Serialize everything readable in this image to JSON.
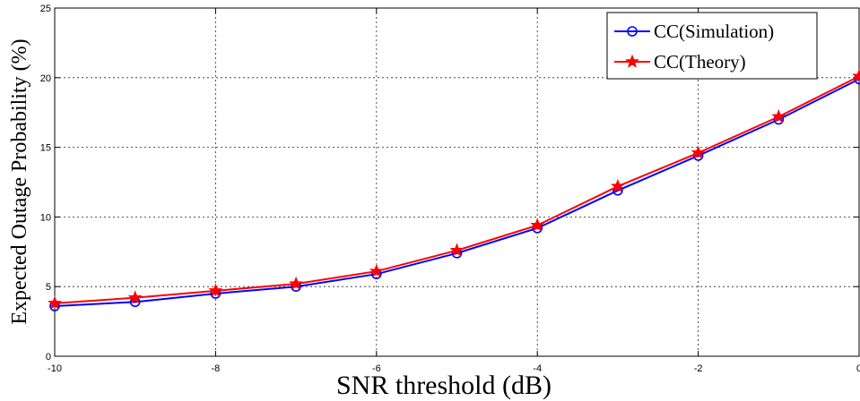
{
  "chart_data": {
    "type": "line",
    "title": "",
    "xlabel": "SNR threshold (dB)",
    "ylabel": "Expected Outage Probability (%)",
    "xlim": [
      -10,
      0
    ],
    "ylim": [
      0,
      25
    ],
    "xticks": [
      -10,
      -8,
      -6,
      -4,
      -2,
      0
    ],
    "yticks": [
      0,
      5,
      10,
      15,
      20,
      25
    ],
    "x": [
      -10,
      -9,
      -8,
      -7,
      -6,
      -5,
      -4,
      -3,
      -2,
      -1,
      0
    ],
    "grid": true,
    "legend_position": "top-right",
    "series": [
      {
        "name": "CC(Simulation)",
        "color": "#0000ff",
        "marker": "circle",
        "values": [
          3.6,
          3.9,
          4.5,
          5.0,
          5.9,
          7.4,
          9.2,
          11.9,
          14.4,
          17.0,
          19.9
        ]
      },
      {
        "name": "CC(Theory)",
        "color": "#ff0000",
        "marker": "star",
        "values": [
          3.8,
          4.2,
          4.7,
          5.2,
          6.1,
          7.6,
          9.4,
          12.2,
          14.6,
          17.2,
          20.1
        ]
      }
    ]
  }
}
